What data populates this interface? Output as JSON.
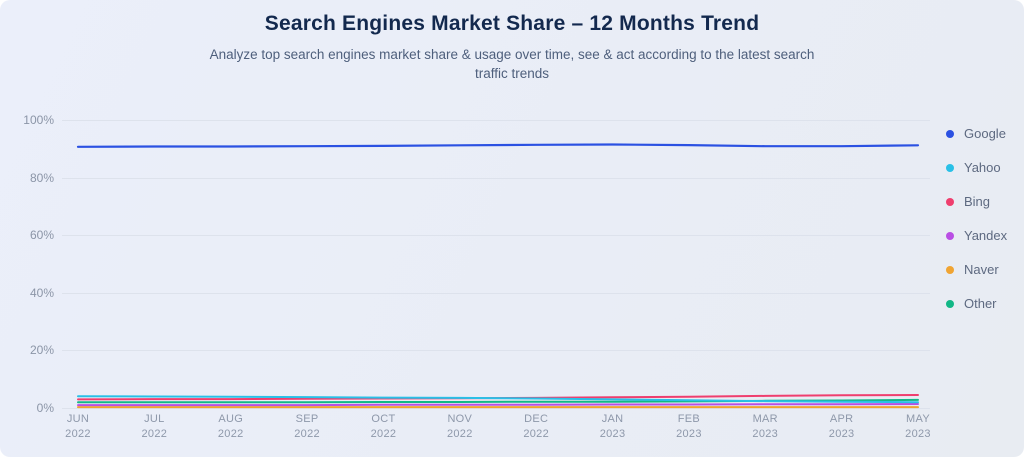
{
  "header": {
    "title": "Search Engines Market Share – 12 Months Trend",
    "subtitle": "Analyze top search engines market share & usage over time, see & act according to the latest search traffic trends"
  },
  "chart_data": {
    "type": "line",
    "title": "Search Engines Market Share – 12 Months Trend",
    "xlabel": "",
    "ylabel": "",
    "ylim": [
      0,
      100
    ],
    "grid": true,
    "legend_position": "right",
    "y_ticks": [
      {
        "label": "100%",
        "value": 100
      },
      {
        "label": "80%",
        "value": 80
      },
      {
        "label": "60%",
        "value": 60
      },
      {
        "label": "40%",
        "value": 40
      },
      {
        "label": "20%",
        "value": 20
      },
      {
        "label": "0%",
        "value": 0
      }
    ],
    "categories": [
      {
        "month": "JUN",
        "year": "2022"
      },
      {
        "month": "JUL",
        "year": "2022"
      },
      {
        "month": "AUG",
        "year": "2022"
      },
      {
        "month": "SEP",
        "year": "2022"
      },
      {
        "month": "OCT",
        "year": "2022"
      },
      {
        "month": "NOV",
        "year": "2022"
      },
      {
        "month": "DEC",
        "year": "2022"
      },
      {
        "month": "JAN",
        "year": "2023"
      },
      {
        "month": "FEB",
        "year": "2023"
      },
      {
        "month": "MAR",
        "year": "2023"
      },
      {
        "month": "APR",
        "year": "2023"
      },
      {
        "month": "MAY",
        "year": "2023"
      }
    ],
    "series": [
      {
        "name": "Google",
        "color": "#2b51e2",
        "values": [
          90.7,
          90.8,
          90.8,
          90.9,
          91.0,
          91.2,
          91.4,
          91.5,
          91.3,
          90.9,
          90.9,
          91.2
        ]
      },
      {
        "name": "Yahoo",
        "color": "#29c0e7",
        "values": [
          4.1,
          4.0,
          3.9,
          3.8,
          3.6,
          3.5,
          3.3,
          3.0,
          2.7,
          2.4,
          2.2,
          2.0
        ]
      },
      {
        "name": "Bing",
        "color": "#ef3e6e",
        "values": [
          3.0,
          3.1,
          3.1,
          3.2,
          3.3,
          3.4,
          3.5,
          3.7,
          3.9,
          4.2,
          4.4,
          4.5
        ]
      },
      {
        "name": "Yandex",
        "color": "#b94ee4",
        "values": [
          1.0,
          1.0,
          1.0,
          1.0,
          1.1,
          1.1,
          1.1,
          1.2,
          1.2,
          1.3,
          1.3,
          1.4
        ]
      },
      {
        "name": "Naver",
        "color": "#f0a432",
        "values": [
          0.3,
          0.3,
          0.3,
          0.3,
          0.3,
          0.3,
          0.3,
          0.3,
          0.3,
          0.3,
          0.3,
          0.3
        ]
      },
      {
        "name": "Other",
        "color": "#12b786",
        "values": [
          2.0,
          2.0,
          2.0,
          2.0,
          2.1,
          2.1,
          2.2,
          2.2,
          2.3,
          2.5,
          2.6,
          2.8
        ]
      }
    ]
  }
}
